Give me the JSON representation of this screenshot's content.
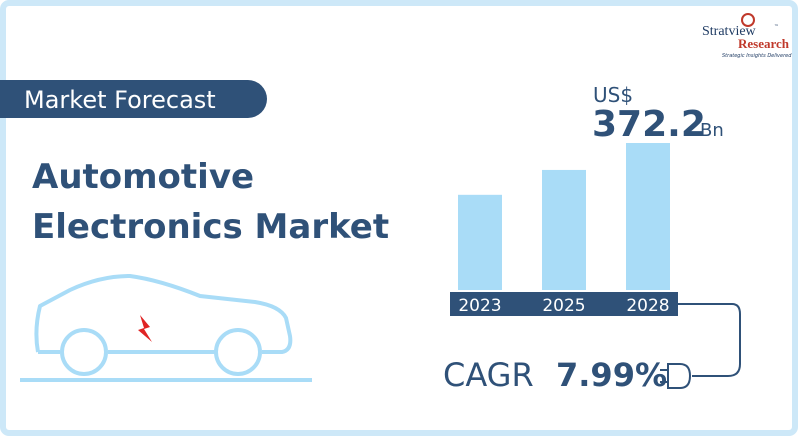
{
  "header": {
    "badge": "Market Forecast",
    "title_lines": [
      "Automotive",
      "Electronics Market"
    ]
  },
  "logo": {
    "name": "Stratview",
    "trademark": "™",
    "name2": "Research",
    "tagline": "Strategic Insights Delivered"
  },
  "chart_data": {
    "type": "bar",
    "categories": [
      "2023",
      "2025",
      "2028"
    ],
    "values": [
      241,
      304,
      372.2
    ],
    "color": "#a9dcf7",
    "value_prefix": "US$",
    "value_unit": "Bn"
  },
  "cagr": {
    "label": "CAGR",
    "value": "7.99%"
  }
}
